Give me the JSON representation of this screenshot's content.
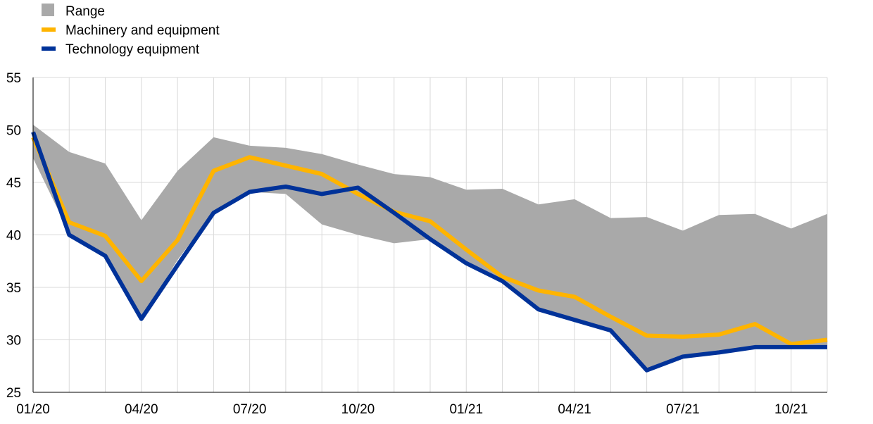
{
  "chart_data": {
    "type": "line",
    "title": "",
    "xlabel": "",
    "ylabel": "",
    "ylim": [
      25,
      55
    ],
    "yticks": [
      25,
      30,
      35,
      40,
      45,
      50,
      55
    ],
    "x": [
      "01/20",
      "02/20",
      "03/20",
      "04/20",
      "05/20",
      "06/20",
      "07/20",
      "08/20",
      "09/20",
      "10/20",
      "11/20",
      "12/20",
      "01/21",
      "02/21",
      "03/21",
      "04/21",
      "05/21",
      "06/21",
      "07/21",
      "08/21",
      "09/21",
      "10/21",
      "11/21"
    ],
    "xtick_labels": [
      "01/20",
      "04/20",
      "07/20",
      "10/20",
      "01/21",
      "04/21",
      "07/21",
      "10/21"
    ],
    "grid": "vertical and horizontal",
    "legend_position": "top-left",
    "range": {
      "name": "Range",
      "color": "#a9a9a9",
      "upper": [
        50.5,
        47.9,
        46.8,
        41.4,
        46.1,
        49.3,
        48.5,
        48.3,
        47.7,
        46.7,
        45.8,
        45.5,
        44.3,
        44.4,
        42.9,
        43.4,
        41.6,
        41.7,
        40.4,
        41.9,
        42.0,
        40.6,
        42.0
      ],
      "lower": [
        47.3,
        40.2,
        38.2,
        32.0,
        37.6,
        42.2,
        44.1,
        43.9,
        41.0,
        40.0,
        39.2,
        39.6,
        37.4,
        35.7,
        33.0,
        31.9,
        30.9,
        27.1,
        28.4,
        28.8,
        29.3,
        29.3,
        29.3
      ]
    },
    "series": [
      {
        "name": "Machinery and equipment",
        "color": "#ffb400",
        "values": [
          49.3,
          41.2,
          39.9,
          35.6,
          39.5,
          46.1,
          47.4,
          46.6,
          45.8,
          43.9,
          42.2,
          41.3,
          38.6,
          36.0,
          34.7,
          34.1,
          32.2,
          30.4,
          30.3,
          30.5,
          31.5,
          29.6,
          30.0
        ]
      },
      {
        "name": "Technology equipment",
        "color": "#003299",
        "values": [
          49.8,
          40.0,
          38.0,
          32.0,
          37.1,
          42.1,
          44.1,
          44.6,
          43.9,
          44.5,
          42.1,
          39.6,
          37.3,
          35.6,
          32.9,
          31.9,
          30.9,
          27.1,
          28.4,
          28.8,
          29.3,
          29.3,
          29.3
        ]
      }
    ]
  }
}
